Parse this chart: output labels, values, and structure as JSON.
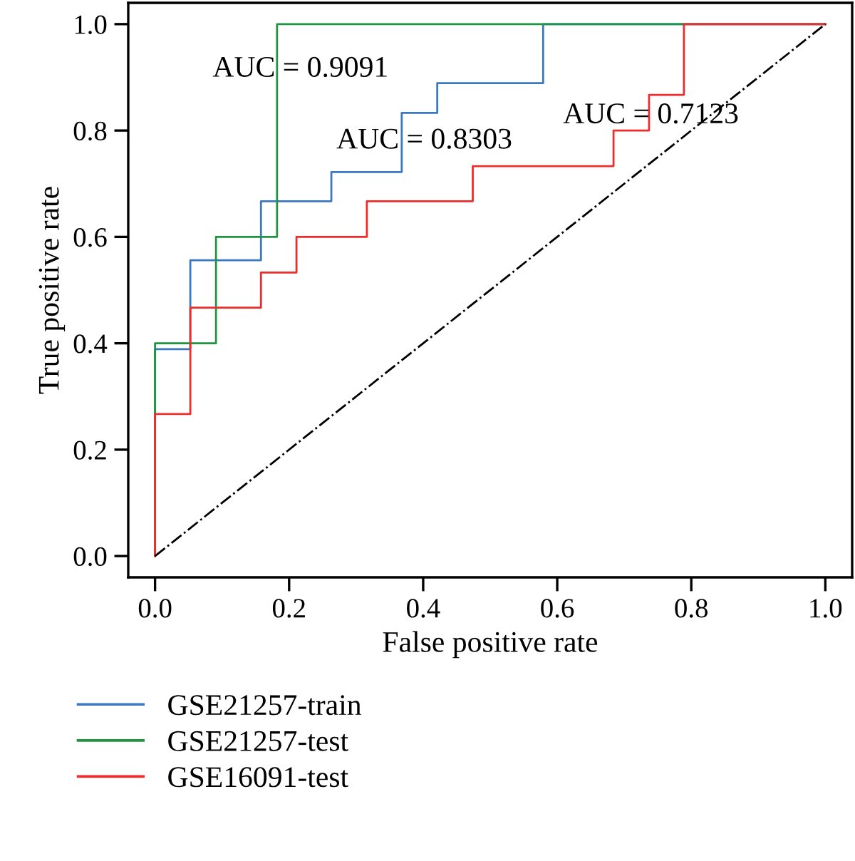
{
  "chart_data": {
    "type": "step",
    "xlabel": "False positive rate",
    "ylabel": "True positive rate",
    "xlim": [
      -0.04,
      1.04
    ],
    "ylim": [
      -0.04,
      1.04
    ],
    "xticks": [
      {
        "value": 0,
        "label": "0.0"
      },
      0.2,
      0.4,
      0.6,
      0.8,
      {
        "value": 1,
        "label": "1.0"
      }
    ],
    "yticks": [
      {
        "value": 0,
        "label": "0.0"
      },
      0.2,
      0.4,
      0.6,
      0.8,
      {
        "value": 1,
        "label": "1.0"
      }
    ],
    "grid": false,
    "legend": "bottom left",
    "series": [
      {
        "name": "GSE21257-train",
        "color": "#3b78c4",
        "x": [
          0,
          0,
          0.0526,
          0.0526,
          0.158,
          0.158,
          0.263,
          0.263,
          0.368,
          0.368,
          0.421,
          0.421,
          0.579,
          0.579,
          1.0
        ],
        "values": [
          0,
          0.389,
          0.389,
          0.556,
          0.556,
          0.667,
          0.667,
          0.722,
          0.722,
          0.833,
          0.833,
          0.889,
          0.889,
          1.0,
          1.0
        ]
      },
      {
        "name": "GSE21257-test",
        "color": "#1e9640",
        "x": [
          0,
          0,
          0.0909,
          0.0909,
          0.182,
          0.182,
          1.0
        ],
        "values": [
          0,
          0.4,
          0.4,
          0.6,
          0.6,
          1.0,
          1.0
        ]
      },
      {
        "name": "GSE16091-test",
        "color": "#ee2c2c",
        "x": [
          0,
          0,
          0.0526,
          0.0526,
          0.158,
          0.158,
          0.211,
          0.211,
          0.316,
          0.316,
          0.474,
          0.474,
          0.684,
          0.684,
          0.737,
          0.737,
          0.789,
          0.789,
          1.0
        ],
        "values": [
          0,
          0.267,
          0.267,
          0.467,
          0.467,
          0.533,
          0.533,
          0.6,
          0.6,
          0.667,
          0.667,
          0.733,
          0.733,
          0.8,
          0.8,
          0.867,
          0.867,
          1.0,
          1.0
        ]
      },
      {
        "type": "line",
        "color": "#000000",
        "line_style": "dashdot",
        "x": [
          0,
          1
        ],
        "values": [
          0,
          1
        ]
      }
    ],
    "annotations": [
      "AUC = 0.9091",
      "AUC = 0.8303",
      "AUC = 0.7123"
    ]
  }
}
